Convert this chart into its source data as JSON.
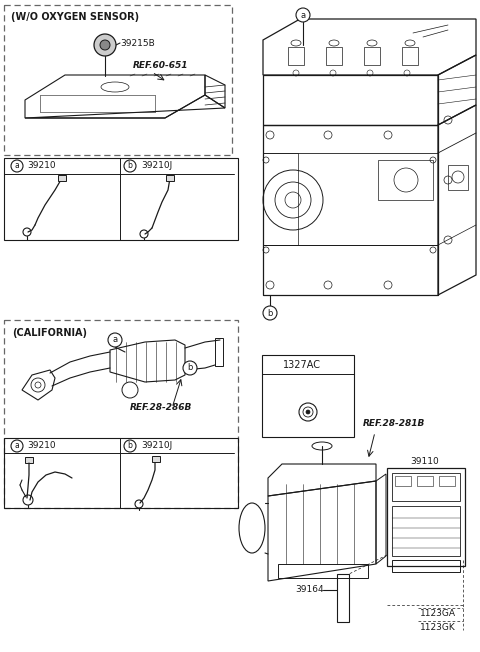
{
  "bg": "#ffffff",
  "lc": "#1a1a1a",
  "labels": {
    "wo_sensor": "(W/O OXYGEN SENSOR)",
    "california": "(CALIFORNIA)",
    "ref_39215B": "39215B",
    "ref_60651": "REF.60-651",
    "ref_28286B": "REF.28-286B",
    "ref_28281B": "REF.28-281B",
    "part_1327AC": "1327AC",
    "part_39110": "39110",
    "part_39164": "39164",
    "part_1123GA": "1123GA",
    "part_1123GK": "1123GK",
    "part_39210": "39210",
    "part_39210J": "39210J"
  }
}
